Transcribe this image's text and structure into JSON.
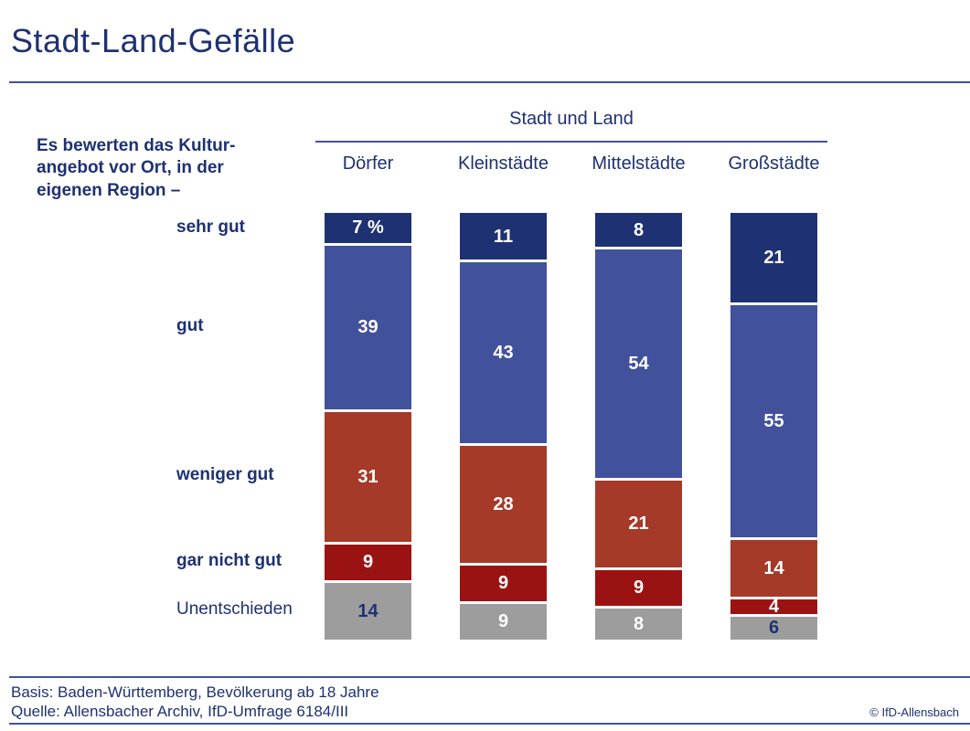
{
  "header": {
    "title": "Stadt-Land-Gefälle"
  },
  "chart_data": {
    "type": "bar",
    "stacked": true,
    "percent_total": 100,
    "group_title": "Stadt und Land",
    "intro_lines": [
      "Es bewerten das Kultur-",
      "angebot vor Ort, in der",
      "eigenen Region –"
    ],
    "categories": [
      "Dörfer",
      "Kleinstädte",
      "Mittelstädte",
      "Großstädte"
    ],
    "series": [
      {
        "name": "sehr gut",
        "color": "#1e3172",
        "values": [
          7,
          11,
          8,
          21
        ]
      },
      {
        "name": "gut",
        "color": "#42519b",
        "values": [
          39,
          43,
          54,
          55
        ]
      },
      {
        "name": "weniger gut",
        "color": "#a53a28",
        "values": [
          31,
          28,
          21,
          14
        ]
      },
      {
        "name": "gar nicht gut",
        "color": "#9a1312",
        "values": [
          9,
          9,
          9,
          4
        ]
      },
      {
        "name": "Unentschieden",
        "color": "#9d9d9d",
        "values": [
          14,
          9,
          8,
          6
        ]
      }
    ],
    "row_label_bold": [
      true,
      true,
      true,
      true,
      false
    ],
    "value_labels": [
      [
        "7 %",
        "39",
        "31",
        "9",
        "14"
      ],
      [
        "11",
        "43",
        "28",
        "9",
        "9"
      ],
      [
        "8",
        "54",
        "21",
        "9",
        "8"
      ],
      [
        "21",
        "55",
        "14",
        "4",
        "6"
      ]
    ],
    "value_label_colors": [
      [
        "#ffffff",
        "#ffffff",
        "#ffffff",
        "#ffffff",
        "#1e3172"
      ],
      [
        "#ffffff",
        "#ffffff",
        "#ffffff",
        "#ffffff",
        "#ffffff"
      ],
      [
        "#ffffff",
        "#ffffff",
        "#ffffff",
        "#ffffff",
        "#ffffff"
      ],
      [
        "#ffffff",
        "#ffffff",
        "#ffffff",
        "#ffffff",
        "#1e3172"
      ]
    ],
    "legend_position": "left-row-labels",
    "grid": false,
    "ylim": [
      0,
      100
    ]
  },
  "footer": {
    "basis": "Basis: Baden-Württemberg, Bevölkerung ab 18 Jahre",
    "quelle": "Quelle: Allensbacher Archiv, IfD-Umfrage 6184/III",
    "copyright": "© IfD-Allensbach"
  },
  "colors": {
    "navy": "#1e3172",
    "blue": "#42519b",
    "brick": "#a53a28",
    "dark_red": "#9a1312",
    "gray": "#9d9d9d",
    "text": "#1e3172",
    "rule": "#42519b"
  }
}
